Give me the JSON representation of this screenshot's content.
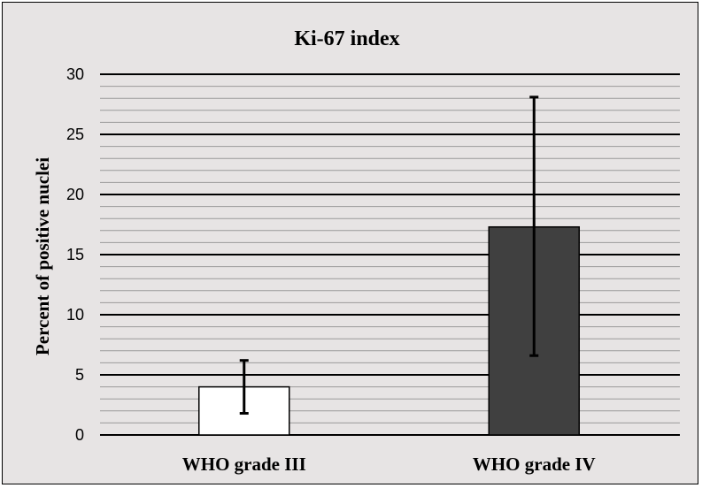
{
  "chart_data": {
    "type": "bar",
    "title": "Ki-67 index",
    "xlabel": "",
    "ylabel": "Percent of positive nuclei",
    "categories": [
      "WHO grade III",
      "WHO grade IV"
    ],
    "values": [
      4.0,
      17.3
    ],
    "error_low": [
      1.8,
      6.6
    ],
    "error_high": [
      6.2,
      28.1
    ],
    "ylim": [
      0,
      30
    ],
    "major_ticks": [
      0,
      5,
      10,
      15,
      20,
      25,
      30
    ],
    "minor_tick_step": 1,
    "grid": true,
    "legend": "none",
    "colors": {
      "background": "#e7e4e4",
      "bars": [
        "#ffffff",
        "#404040"
      ],
      "bar_outline": "#000000",
      "major_grid": "#000000",
      "minor_grid": "#9a9a9a",
      "error_bar": "#000000"
    }
  }
}
